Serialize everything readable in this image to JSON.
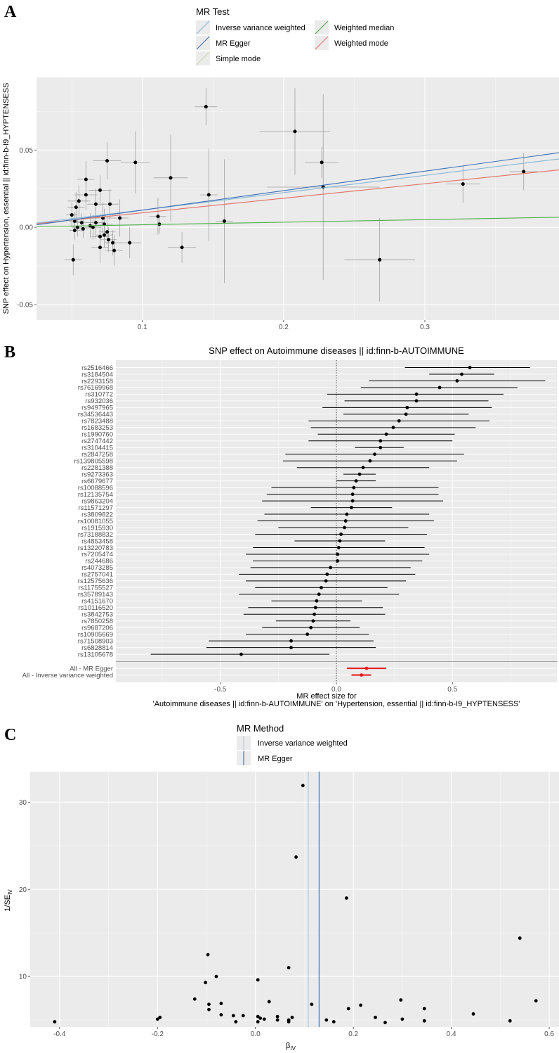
{
  "panels": {
    "A": {
      "label": "A",
      "legend_title": "MR Test",
      "legend_items": [
        {
          "name": "Inverse variance weighted",
          "color": "#87b7d8"
        },
        {
          "name": "Weighted median",
          "color": "#4daf4a"
        },
        {
          "name": "MR Egger",
          "color": "#3a6fb5"
        },
        {
          "name": "Weighted mode",
          "color": "#e8706b"
        },
        {
          "name": "Simple mode",
          "color": "#c8d9a8"
        }
      ],
      "ylabel": "SNP effect on Hypertension, essential || id:finn-b-I9_HYPTENSESS",
      "xticks": [
        "0.1",
        "0.2",
        "0.3"
      ],
      "yticks": [
        "0.05",
        "0.00",
        "-0.05"
      ]
    },
    "B": {
      "label": "B",
      "title": "SNP effect on Autoimmune diseases || id:finn-b-AUTOIMMUNE",
      "xlabel1": "MR effect size for",
      "xlabel2": "'Autoimmune diseases || id:finn-b-AUTOIMMUNE' on 'Hypertension, essential || id:finn-b-I9_HYPTENSESS'",
      "xticks": [
        "-0.5",
        "0.0",
        "0.5"
      ]
    },
    "C": {
      "label": "C",
      "legend_title": "MR Method",
      "legend_items": [
        {
          "name": "Inverse variance weighted",
          "color": "#a9c8e0"
        },
        {
          "name": "MR Egger",
          "color": "#2f6db0"
        }
      ],
      "ylabel": "1/SE",
      "ylabel_sub": "IV",
      "xlabel": "β",
      "xlabel_sub": "IV",
      "xticks": [
        "-0.4",
        "-0.2",
        "0.0",
        "0.2",
        "0.4",
        "0.6"
      ],
      "yticks": [
        "10",
        "20",
        "30"
      ]
    }
  },
  "chart_data": [
    {
      "type": "scatter",
      "panel": "A",
      "xlim": [
        0.025,
        0.395
      ],
      "ylim": [
        -0.06,
        0.097
      ],
      "points": [
        {
          "x": 0.145,
          "y": 0.078,
          "xe": 0.008,
          "ye": 0.012
        },
        {
          "x": 0.208,
          "y": 0.062,
          "xe": 0.025,
          "ye": 0.028
        },
        {
          "x": 0.095,
          "y": 0.042,
          "xe": 0.01,
          "ye": 0.02
        },
        {
          "x": 0.075,
          "y": 0.043,
          "xe": 0.01,
          "ye": 0.012
        },
        {
          "x": 0.227,
          "y": 0.042,
          "xe": 0.012,
          "ye": 0.01
        },
        {
          "x": 0.12,
          "y": 0.032,
          "xe": 0.012,
          "ye": 0.028
        },
        {
          "x": 0.06,
          "y": 0.031,
          "xe": 0.006,
          "ye": 0.012
        },
        {
          "x": 0.07,
          "y": 0.024,
          "xe": 0.008,
          "ye": 0.01
        },
        {
          "x": 0.228,
          "y": 0.026,
          "xe": 0.04,
          "ye": 0.06
        },
        {
          "x": 0.147,
          "y": 0.021,
          "xe": 0.006,
          "ye": 0.03
        },
        {
          "x": 0.06,
          "y": 0.021,
          "xe": 0.008,
          "ye": 0.01
        },
        {
          "x": 0.055,
          "y": 0.017,
          "xe": 0.008,
          "ye": 0.01
        },
        {
          "x": 0.077,
          "y": 0.015,
          "xe": 0.006,
          "ye": 0.01
        },
        {
          "x": 0.067,
          "y": 0.015,
          "xe": 0.006,
          "ye": 0.01
        },
        {
          "x": 0.053,
          "y": 0.013,
          "xe": 0.006,
          "ye": 0.01
        },
        {
          "x": 0.05,
          "y": 0.008,
          "xe": 0.004,
          "ye": 0.008
        },
        {
          "x": 0.111,
          "y": 0.007,
          "xe": 0.006,
          "ye": 0.012
        },
        {
          "x": 0.084,
          "y": 0.006,
          "xe": 0.006,
          "ye": 0.012
        },
        {
          "x": 0.072,
          "y": 0.006,
          "xe": 0.006,
          "ye": 0.01
        },
        {
          "x": 0.052,
          "y": 0.004,
          "xe": 0.004,
          "ye": 0.006
        },
        {
          "x": 0.057,
          "y": 0.003,
          "xe": 0.004,
          "ye": 0.006
        },
        {
          "x": 0.067,
          "y": 0.003,
          "xe": 0.006,
          "ye": 0.01
        },
        {
          "x": 0.073,
          "y": 0.002,
          "xe": 0.006,
          "ye": 0.01
        },
        {
          "x": 0.112,
          "y": 0.002,
          "xe": 0.004,
          "ye": 0.006
        },
        {
          "x": 0.158,
          "y": 0.004,
          "xe": 0.006,
          "ye": 0.04
        },
        {
          "x": 0.063,
          "y": 0.001,
          "xe": 0.006,
          "ye": 0.008
        },
        {
          "x": 0.065,
          "y": 0.0,
          "xe": 0.006,
          "ye": 0.008
        },
        {
          "x": 0.054,
          "y": 0.0,
          "xe": 0.004,
          "ye": 0.006
        },
        {
          "x": 0.058,
          "y": -0.001,
          "xe": 0.004,
          "ye": 0.006
        },
        {
          "x": 0.052,
          "y": -0.002,
          "xe": 0.004,
          "ye": 0.006
        },
        {
          "x": 0.075,
          "y": -0.003,
          "xe": 0.006,
          "ye": 0.008
        },
        {
          "x": 0.073,
          "y": -0.005,
          "xe": 0.006,
          "ye": 0.008
        },
        {
          "x": 0.07,
          "y": -0.006,
          "xe": 0.006,
          "ye": 0.008
        },
        {
          "x": 0.076,
          "y": -0.008,
          "xe": 0.006,
          "ye": 0.008
        },
        {
          "x": 0.079,
          "y": -0.01,
          "xe": 0.006,
          "ye": 0.008
        },
        {
          "x": 0.091,
          "y": -0.01,
          "xe": 0.008,
          "ye": 0.01
        },
        {
          "x": 0.07,
          "y": -0.013,
          "xe": 0.006,
          "ye": 0.01
        },
        {
          "x": 0.128,
          "y": -0.013,
          "xe": 0.01,
          "ye": 0.01
        },
        {
          "x": 0.08,
          "y": -0.015,
          "xe": 0.006,
          "ye": 0.01
        },
        {
          "x": 0.051,
          "y": -0.021,
          "xe": 0.006,
          "ye": 0.01
        },
        {
          "x": 0.268,
          "y": -0.021,
          "xe": 0.025,
          "ye": 0.027
        },
        {
          "x": 0.327,
          "y": 0.028,
          "xe": 0.012,
          "ye": 0.012
        },
        {
          "x": 0.37,
          "y": 0.036,
          "xe": 0.01,
          "ye": 0.012
        }
      ],
      "lines": [
        {
          "name": "Inverse variance weighted",
          "intercept": 0.0,
          "slope": 0.112
        },
        {
          "name": "MR Egger",
          "intercept": -0.0015,
          "slope": 0.126
        },
        {
          "name": "Weighted median",
          "intercept": 0.0,
          "slope": 0.0165
        },
        {
          "name": "Weighted mode",
          "intercept": 0.0,
          "slope": 0.094
        },
        {
          "name": "Simple mode",
          "intercept": 0.0,
          "slope": 0.094
        }
      ]
    },
    {
      "type": "forest",
      "panel": "B",
      "xlim": [
        -0.95,
        0.95
      ],
      "snps": [
        {
          "label": "rs2516466",
          "b": 0.575,
          "lo": 0.295,
          "hi": 0.835
        },
        {
          "label": "rs3184504",
          "b": 0.54,
          "lo": 0.4,
          "hi": 0.68
        },
        {
          "label": "rs2293158",
          "b": 0.52,
          "lo": 0.14,
          "hi": 0.9
        },
        {
          "label": "rs76169968",
          "b": 0.445,
          "lo": 0.105,
          "hi": 0.78
        },
        {
          "label": "rs310772",
          "b": 0.345,
          "lo": -0.04,
          "hi": 0.72
        },
        {
          "label": "rs932036",
          "b": 0.345,
          "lo": 0.035,
          "hi": 0.655
        },
        {
          "label": "rs9497965",
          "b": 0.305,
          "lo": -0.06,
          "hi": 0.67
        },
        {
          "label": "rs34536443",
          "b": 0.3,
          "lo": 0.03,
          "hi": 0.57
        },
        {
          "label": "rs7823488",
          "b": 0.27,
          "lo": -0.12,
          "hi": 0.66
        },
        {
          "label": "rs1683253",
          "b": 0.245,
          "lo": -0.11,
          "hi": 0.6
        },
        {
          "label": "rs1990760",
          "b": 0.215,
          "lo": -0.08,
          "hi": 0.51
        },
        {
          "label": "rs2747442",
          "b": 0.19,
          "lo": -0.12,
          "hi": 0.5
        },
        {
          "label": "rs3104415",
          "b": 0.19,
          "lo": 0.08,
          "hi": 0.29
        },
        {
          "label": "rs2847258",
          "b": 0.165,
          "lo": -0.22,
          "hi": 0.55
        },
        {
          "label": "rs139805598",
          "b": 0.145,
          "lo": -0.23,
          "hi": 0.52
        },
        {
          "label": "rs2281388",
          "b": 0.115,
          "lo": -0.17,
          "hi": 0.4
        },
        {
          "label": "rs9273363",
          "b": 0.1,
          "lo": 0.03,
          "hi": 0.17
        },
        {
          "label": "rs6679677",
          "b": 0.085,
          "lo": 0.0,
          "hi": 0.17
        },
        {
          "label": "rs10088596",
          "b": 0.075,
          "lo": -0.28,
          "hi": 0.44
        },
        {
          "label": "rs12135754",
          "b": 0.07,
          "lo": -0.3,
          "hi": 0.44
        },
        {
          "label": "rs9863204",
          "b": 0.07,
          "lo": -0.32,
          "hi": 0.46
        },
        {
          "label": "rs11571297",
          "b": 0.065,
          "lo": -0.11,
          "hi": 0.24
        },
        {
          "label": "rs3809822",
          "b": 0.045,
          "lo": -0.31,
          "hi": 0.4
        },
        {
          "label": "rs10081055",
          "b": 0.04,
          "lo": -0.34,
          "hi": 0.42
        },
        {
          "label": "rs1915930",
          "b": 0.035,
          "lo": -0.25,
          "hi": 0.31
        },
        {
          "label": "rs73188832",
          "b": 0.02,
          "lo": -0.35,
          "hi": 0.39
        },
        {
          "label": "rs4853458",
          "b": 0.015,
          "lo": -0.18,
          "hi": 0.21
        },
        {
          "label": "rs13220783",
          "b": 0.01,
          "lo": -0.36,
          "hi": 0.38
        },
        {
          "label": "rs7205474",
          "b": 0.005,
          "lo": -0.39,
          "hi": 0.4
        },
        {
          "label": "rs244686",
          "b": 0.005,
          "lo": -0.36,
          "hi": 0.37
        },
        {
          "label": "rs4073285",
          "b": -0.025,
          "lo": -0.37,
          "hi": 0.32
        },
        {
          "label": "rs2757041",
          "b": -0.04,
          "lo": -0.42,
          "hi": 0.34
        },
        {
          "label": "rs12575636",
          "b": -0.045,
          "lo": -0.39,
          "hi": 0.3
        },
        {
          "label": "rs11755527",
          "b": -0.065,
          "lo": -0.35,
          "hi": 0.22
        },
        {
          "label": "rs35789143",
          "b": -0.075,
          "lo": -0.42,
          "hi": 0.27
        },
        {
          "label": "rs4151670",
          "b": -0.085,
          "lo": -0.28,
          "hi": 0.11
        },
        {
          "label": "rs10116520",
          "b": -0.09,
          "lo": -0.38,
          "hi": 0.2
        },
        {
          "label": "rs3842753",
          "b": -0.095,
          "lo": -0.4,
          "hi": 0.21
        },
        {
          "label": "rs7850258",
          "b": -0.1,
          "lo": -0.26,
          "hi": 0.06
        },
        {
          "label": "rs9687206",
          "b": -0.11,
          "lo": -0.32,
          "hi": 0.1
        },
        {
          "label": "rs10905669",
          "b": -0.125,
          "lo": -0.39,
          "hi": 0.14
        },
        {
          "label": "rs71508903",
          "b": -0.195,
          "lo": -0.55,
          "hi": 0.16
        },
        {
          "label": "rs6828814",
          "b": -0.195,
          "lo": -0.56,
          "hi": 0.17
        },
        {
          "label": "rs13105678",
          "b": -0.41,
          "lo": -0.8,
          "hi": -0.03
        }
      ],
      "summary": [
        {
          "label": "All - MR Egger",
          "b": 0.13,
          "lo": 0.045,
          "hi": 0.215
        },
        {
          "label": "All - Inverse variance weighted",
          "b": 0.108,
          "lo": 0.065,
          "hi": 0.15
        }
      ]
    },
    {
      "type": "scatter",
      "panel": "C",
      "xlim": [
        -0.46,
        0.62
      ],
      "ylim": [
        4.2,
        33.5
      ],
      "vlines": [
        {
          "name": "Inverse variance weighted",
          "x": 0.108
        },
        {
          "name": "MR Egger",
          "x": 0.13
        }
      ],
      "points": [
        {
          "x": 0.097,
          "y": 31.9
        },
        {
          "x": 0.083,
          "y": 23.7
        },
        {
          "x": 0.186,
          "y": 19.0
        },
        {
          "x": 0.54,
          "y": 14.4
        },
        {
          "x": -0.097,
          "y": 12.5
        },
        {
          "x": 0.068,
          "y": 11.0
        },
        {
          "x": -0.08,
          "y": 10.0
        },
        {
          "x": 0.005,
          "y": 9.6
        },
        {
          "x": -0.102,
          "y": 9.3
        },
        {
          "x": -0.124,
          "y": 7.4
        },
        {
          "x": 0.297,
          "y": 7.3
        },
        {
          "x": 0.573,
          "y": 7.2
        },
        {
          "x": 0.028,
          "y": 7.1
        },
        {
          "x": -0.07,
          "y": 6.9
        },
        {
          "x": -0.095,
          "y": 6.8
        },
        {
          "x": 0.115,
          "y": 6.8
        },
        {
          "x": 0.215,
          "y": 6.7
        },
        {
          "x": -0.095,
          "y": 6.2
        },
        {
          "x": 0.19,
          "y": 6.3
        },
        {
          "x": 0.345,
          "y": 6.3
        },
        {
          "x": 0.445,
          "y": 5.7
        },
        {
          "x": -0.07,
          "y": 5.6
        },
        {
          "x": -0.045,
          "y": 5.5
        },
        {
          "x": -0.025,
          "y": 5.5
        },
        {
          "x": 0.005,
          "y": 5.4
        },
        {
          "x": 0.045,
          "y": 5.4
        },
        {
          "x": 0.075,
          "y": 5.3
        },
        {
          "x": 0.245,
          "y": 5.3
        },
        {
          "x": -0.195,
          "y": 5.3
        },
        {
          "x": 0.01,
          "y": 5.2
        },
        {
          "x": 0.018,
          "y": 5.1
        },
        {
          "x": 0.045,
          "y": 5.0
        },
        {
          "x": 0.3,
          "y": 5.1
        },
        {
          "x": -0.2,
          "y": 5.1
        },
        {
          "x": 0.068,
          "y": 5.0
        },
        {
          "x": 0.145,
          "y": 5.0
        },
        {
          "x": 0.345,
          "y": 4.9
        },
        {
          "x": 0.52,
          "y": 4.9
        },
        {
          "x": -0.04,
          "y": 4.8
        },
        {
          "x": 0.005,
          "y": 4.8
        },
        {
          "x": 0.068,
          "y": 4.8
        },
        {
          "x": 0.16,
          "y": 4.8
        },
        {
          "x": 0.265,
          "y": 4.7
        },
        {
          "x": -0.41,
          "y": 4.8
        }
      ]
    }
  ]
}
